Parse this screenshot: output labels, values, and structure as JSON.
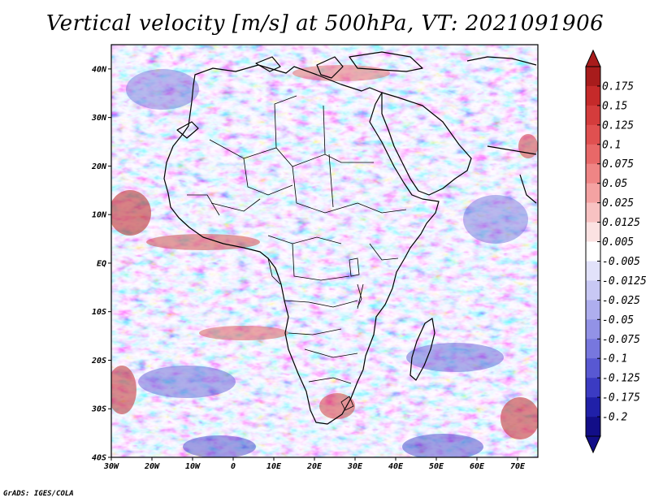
{
  "title": "Vertical velocity [m/s] at 500hPa, VT: 2021091906",
  "credit": "GrADS: IGES/COLA",
  "chart_data": {
    "type": "heatmap",
    "variable": "Vertical velocity",
    "units": "m/s",
    "level": "500hPa",
    "valid_time": "2021091906",
    "lat_range": [
      -40,
      45
    ],
    "lon_range": [
      -30,
      75
    ],
    "lat_ticks": [
      {
        "value": 40,
        "label": "40N"
      },
      {
        "value": 30,
        "label": "30N"
      },
      {
        "value": 20,
        "label": "20N"
      },
      {
        "value": 10,
        "label": "10N"
      },
      {
        "value": 0,
        "label": "EQ"
      },
      {
        "value": -10,
        "label": "10S"
      },
      {
        "value": -20,
        "label": "20S"
      },
      {
        "value": -30,
        "label": "30S"
      },
      {
        "value": -40,
        "label": "40S"
      }
    ],
    "lon_ticks": [
      {
        "value": -30,
        "label": "30W"
      },
      {
        "value": -20,
        "label": "20W"
      },
      {
        "value": -10,
        "label": "10W"
      },
      {
        "value": 0,
        "label": "0"
      },
      {
        "value": 10,
        "label": "10E"
      },
      {
        "value": 20,
        "label": "20E"
      },
      {
        "value": 30,
        "label": "30E"
      },
      {
        "value": 40,
        "label": "40E"
      },
      {
        "value": 50,
        "label": "50E"
      },
      {
        "value": 60,
        "label": "60E"
      },
      {
        "value": 70,
        "label": "70E"
      }
    ],
    "colorbar": {
      "labels": [
        "0.175",
        "0.15",
        "0.125",
        "0.1",
        "0.075",
        "0.05",
        "0.025",
        "0.0125",
        "0.005",
        "-0.005",
        "-0.0125",
        "-0.025",
        "-0.05",
        "-0.075",
        "-0.1",
        "-0.125",
        "-0.175",
        "-0.2"
      ],
      "colors": [
        "#a81c1c",
        "#c52a2a",
        "#d43c3c",
        "#e05050",
        "#e86868",
        "#ef8585",
        "#f4a2a2",
        "#f8c2c2",
        "#fbe2e2",
        "#ffffff",
        "#e2e2fa",
        "#c8c8f4",
        "#aeaeee",
        "#9292e6",
        "#7777de",
        "#5858d2",
        "#3b3bc2",
        "#2020a8",
        "#120e88"
      ]
    },
    "features": [
      "Africa coastline",
      "country borders",
      "Madagascar",
      "Arabian Peninsula",
      "Mediterranean coast"
    ]
  }
}
